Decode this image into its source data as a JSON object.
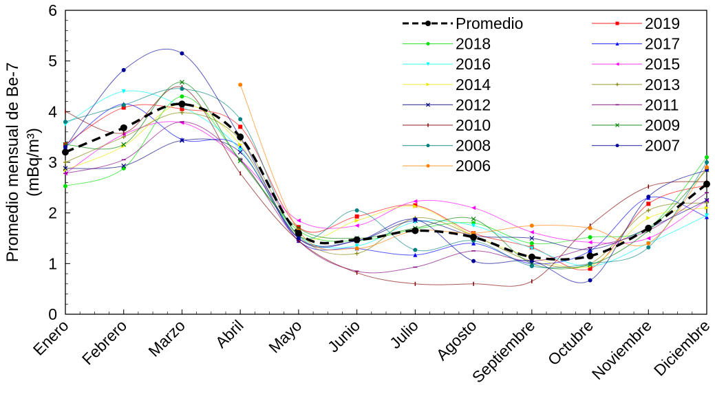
{
  "chart_data": {
    "type": "line",
    "title": "",
    "ylabel": "Promedio mensual de Be-7",
    "ylabel_unit": "(mBq/m³)",
    "xlabel": "",
    "ylim": [
      0,
      6
    ],
    "yticks": [
      "0",
      "1",
      "2",
      "3",
      "4",
      "5",
      "6"
    ],
    "grid": false,
    "legend_placement": "top-right",
    "categories": [
      "Enero",
      "Febrero",
      "Marzo",
      "Abril",
      "Mayo",
      "Junio",
      "Julio",
      "Agosto",
      "Septiembre",
      "Octubre",
      "Noviembre",
      "Diciembre"
    ],
    "series": [
      {
        "name": "Promedio",
        "color": "#000000",
        "dashed": true,
        "marker": "circle",
        "values": [
          3.2,
          3.68,
          4.15,
          3.5,
          1.6,
          1.47,
          1.65,
          1.52,
          1.13,
          1.15,
          1.7,
          2.57
        ]
      },
      {
        "name": "2019",
        "color": "#ff0000",
        "marker": "square",
        "values": [
          3.35,
          4.08,
          4.05,
          3.7,
          1.72,
          1.93,
          2.15,
          1.6,
          1.32,
          0.9,
          2.18,
          2.55
        ]
      },
      {
        "name": "2018",
        "color": "#00e000",
        "marker": "circle",
        "values": [
          2.53,
          2.88,
          4.3,
          3.05,
          1.65,
          1.45,
          1.68,
          1.8,
          1.4,
          1.52,
          1.7,
          3.1
        ]
      },
      {
        "name": "2017",
        "color": "#0000ff",
        "marker": "triangle",
        "values": [
          3.3,
          4.15,
          3.45,
          3.3,
          1.45,
          1.3,
          1.17,
          1.4,
          1.0,
          1.25,
          2.3,
          1.92
        ]
      },
      {
        "name": "2016",
        "color": "#00ffff",
        "marker": "triangle-down",
        "values": [
          3.75,
          4.4,
          4.1,
          3.25,
          1.55,
          1.35,
          1.82,
          1.75,
          1.3,
          0.95,
          1.4,
          1.95
        ]
      },
      {
        "name": "2015",
        "color": "#ff00ff",
        "marker": "triangle-left",
        "values": [
          2.78,
          3.55,
          3.78,
          3.05,
          1.85,
          1.75,
          2.23,
          2.1,
          1.62,
          1.42,
          1.5,
          2.25
        ]
      },
      {
        "name": "2014",
        "color": "#e8e800",
        "marker": "triangle-right",
        "values": [
          2.85,
          3.32,
          4.15,
          3.35,
          1.55,
          1.85,
          2.13,
          1.55,
          1.13,
          0.95,
          1.9,
          2.1
        ]
      },
      {
        "name": "2013",
        "color": "#808000",
        "marker": "plus",
        "values": [
          3.0,
          3.5,
          3.98,
          3.45,
          1.55,
          1.2,
          1.9,
          1.55,
          1.05,
          1.0,
          2.05,
          2.2
        ]
      },
      {
        "name": "2012",
        "color": "#000080",
        "marker": "x",
        "values": [
          2.88,
          2.93,
          3.43,
          3.2,
          1.5,
          1.45,
          1.85,
          1.55,
          1.5,
          1.28,
          1.7,
          2.25
        ]
      },
      {
        "name": "2011",
        "color": "#800080",
        "marker": "dash",
        "values": [
          2.78,
          3.05,
          3.8,
          3.05,
          1.45,
          0.85,
          0.93,
          1.25,
          1.05,
          1.32,
          1.65,
          2.4
        ]
      },
      {
        "name": "2010",
        "color": "#800000",
        "marker": "vbar",
        "values": [
          4.0,
          3.58,
          4.48,
          2.78,
          1.45,
          0.82,
          0.6,
          0.6,
          0.65,
          1.75,
          2.52,
          2.62
        ]
      },
      {
        "name": "2009",
        "color": "#008000",
        "marker": "x",
        "values": [
          3.35,
          3.35,
          4.58,
          3.03,
          1.7,
          1.5,
          1.7,
          1.88,
          1.0,
          0.98,
          1.65,
          2.85
        ]
      },
      {
        "name": "2008",
        "color": "#008080",
        "marker": "circle",
        "values": [
          3.8,
          4.13,
          4.45,
          3.85,
          1.55,
          2.05,
          1.27,
          1.45,
          0.95,
          1.0,
          1.32,
          3.0
        ]
      },
      {
        "name": "2007",
        "color": "#000099",
        "marker": "circle",
        "values": [
          3.3,
          4.82,
          5.15,
          3.5,
          1.5,
          1.45,
          1.87,
          1.05,
          1.05,
          0.67,
          2.32,
          2.85
        ]
      },
      {
        "name": "2006",
        "color": "#ff8000",
        "marker": "circle",
        "values": [
          null,
          null,
          null,
          4.53,
          1.65,
          1.3,
          1.65,
          1.6,
          1.75,
          1.7,
          1.4,
          2.9
        ]
      }
    ]
  }
}
